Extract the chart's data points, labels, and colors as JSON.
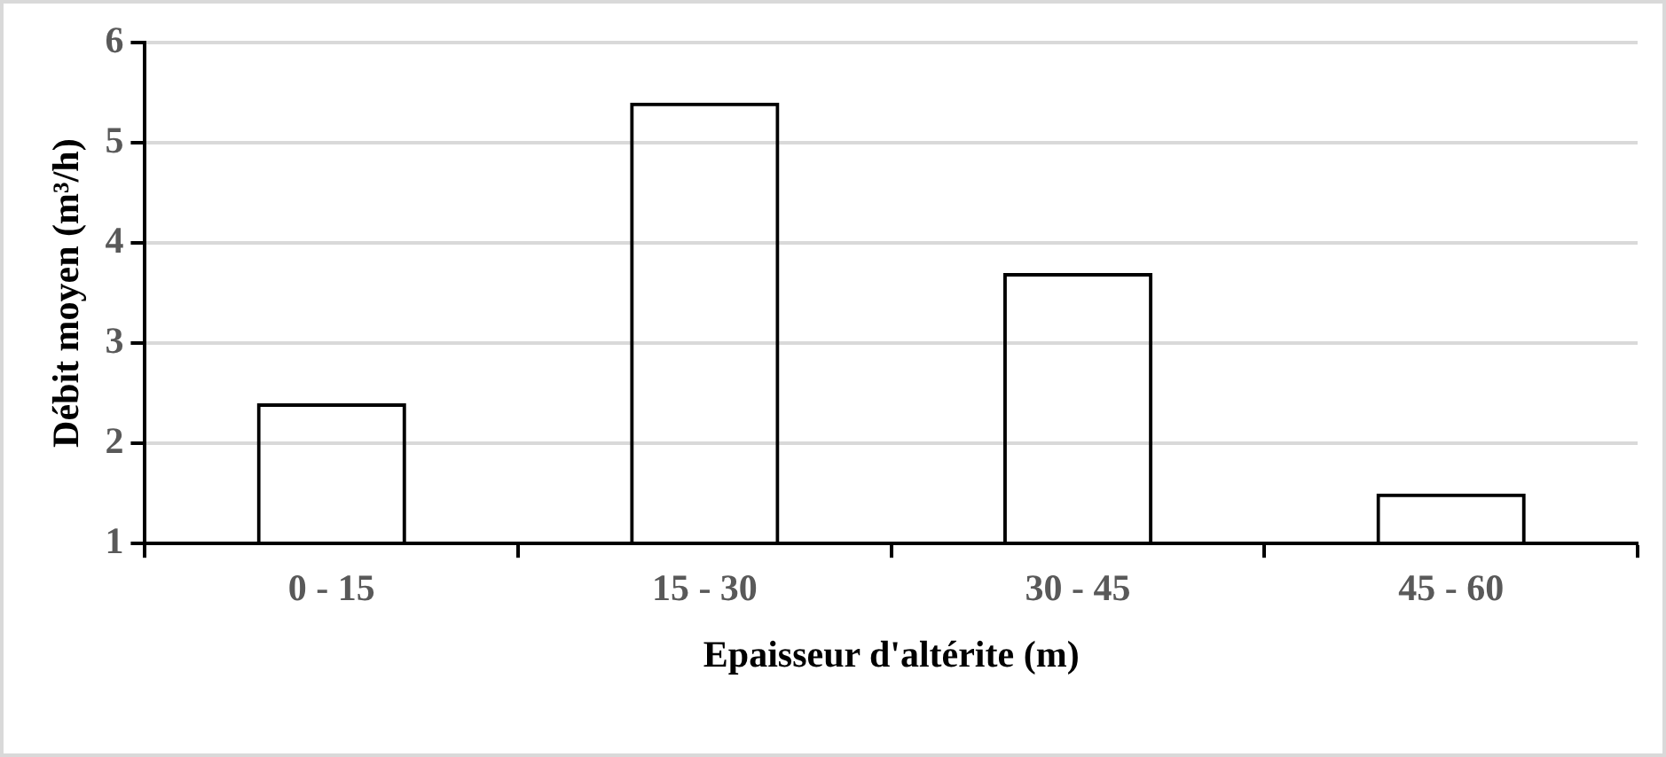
{
  "chart_data": {
    "type": "bar",
    "xlabel": "Epaisseur d'altérite (m)",
    "ylabel": "Débit moyen (m³/h)",
    "categories": [
      "0 - 15",
      "15 - 30",
      "30 - 45",
      "45 - 60"
    ],
    "values": [
      2.4,
      5.4,
      3.7,
      1.5
    ],
    "color": "#000000",
    "ylim": [
      1,
      6
    ],
    "yticks": [
      1,
      2,
      3,
      4,
      5,
      6
    ],
    "grid": "y",
    "legend": false
  }
}
